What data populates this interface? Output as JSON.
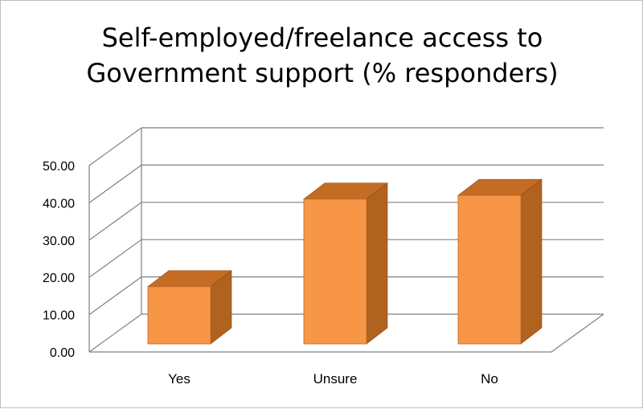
{
  "chart_data": {
    "type": "bar",
    "title": "Self-employed/freelance access to Government support (% responders)",
    "title_lines": [
      "Self-employed/freelance access to",
      "Government support (% responders)"
    ],
    "categories": [
      "Yes",
      "Unsure",
      "No"
    ],
    "values": [
      17.5,
      41.0,
      42.0
    ],
    "ylim": [
      0,
      50
    ],
    "yticks": [
      "0.00",
      "10.00",
      "20.00",
      "30.00",
      "40.00",
      "50.00"
    ],
    "xlabel": "",
    "ylabel": "",
    "style": "3d-column",
    "grid": true,
    "legend": "none",
    "colors": {
      "bar_front": "#f79646",
      "bar_side": "#b0621f",
      "bar_top": "#c46c23",
      "grid": "#808080",
      "text": "#000000"
    }
  }
}
